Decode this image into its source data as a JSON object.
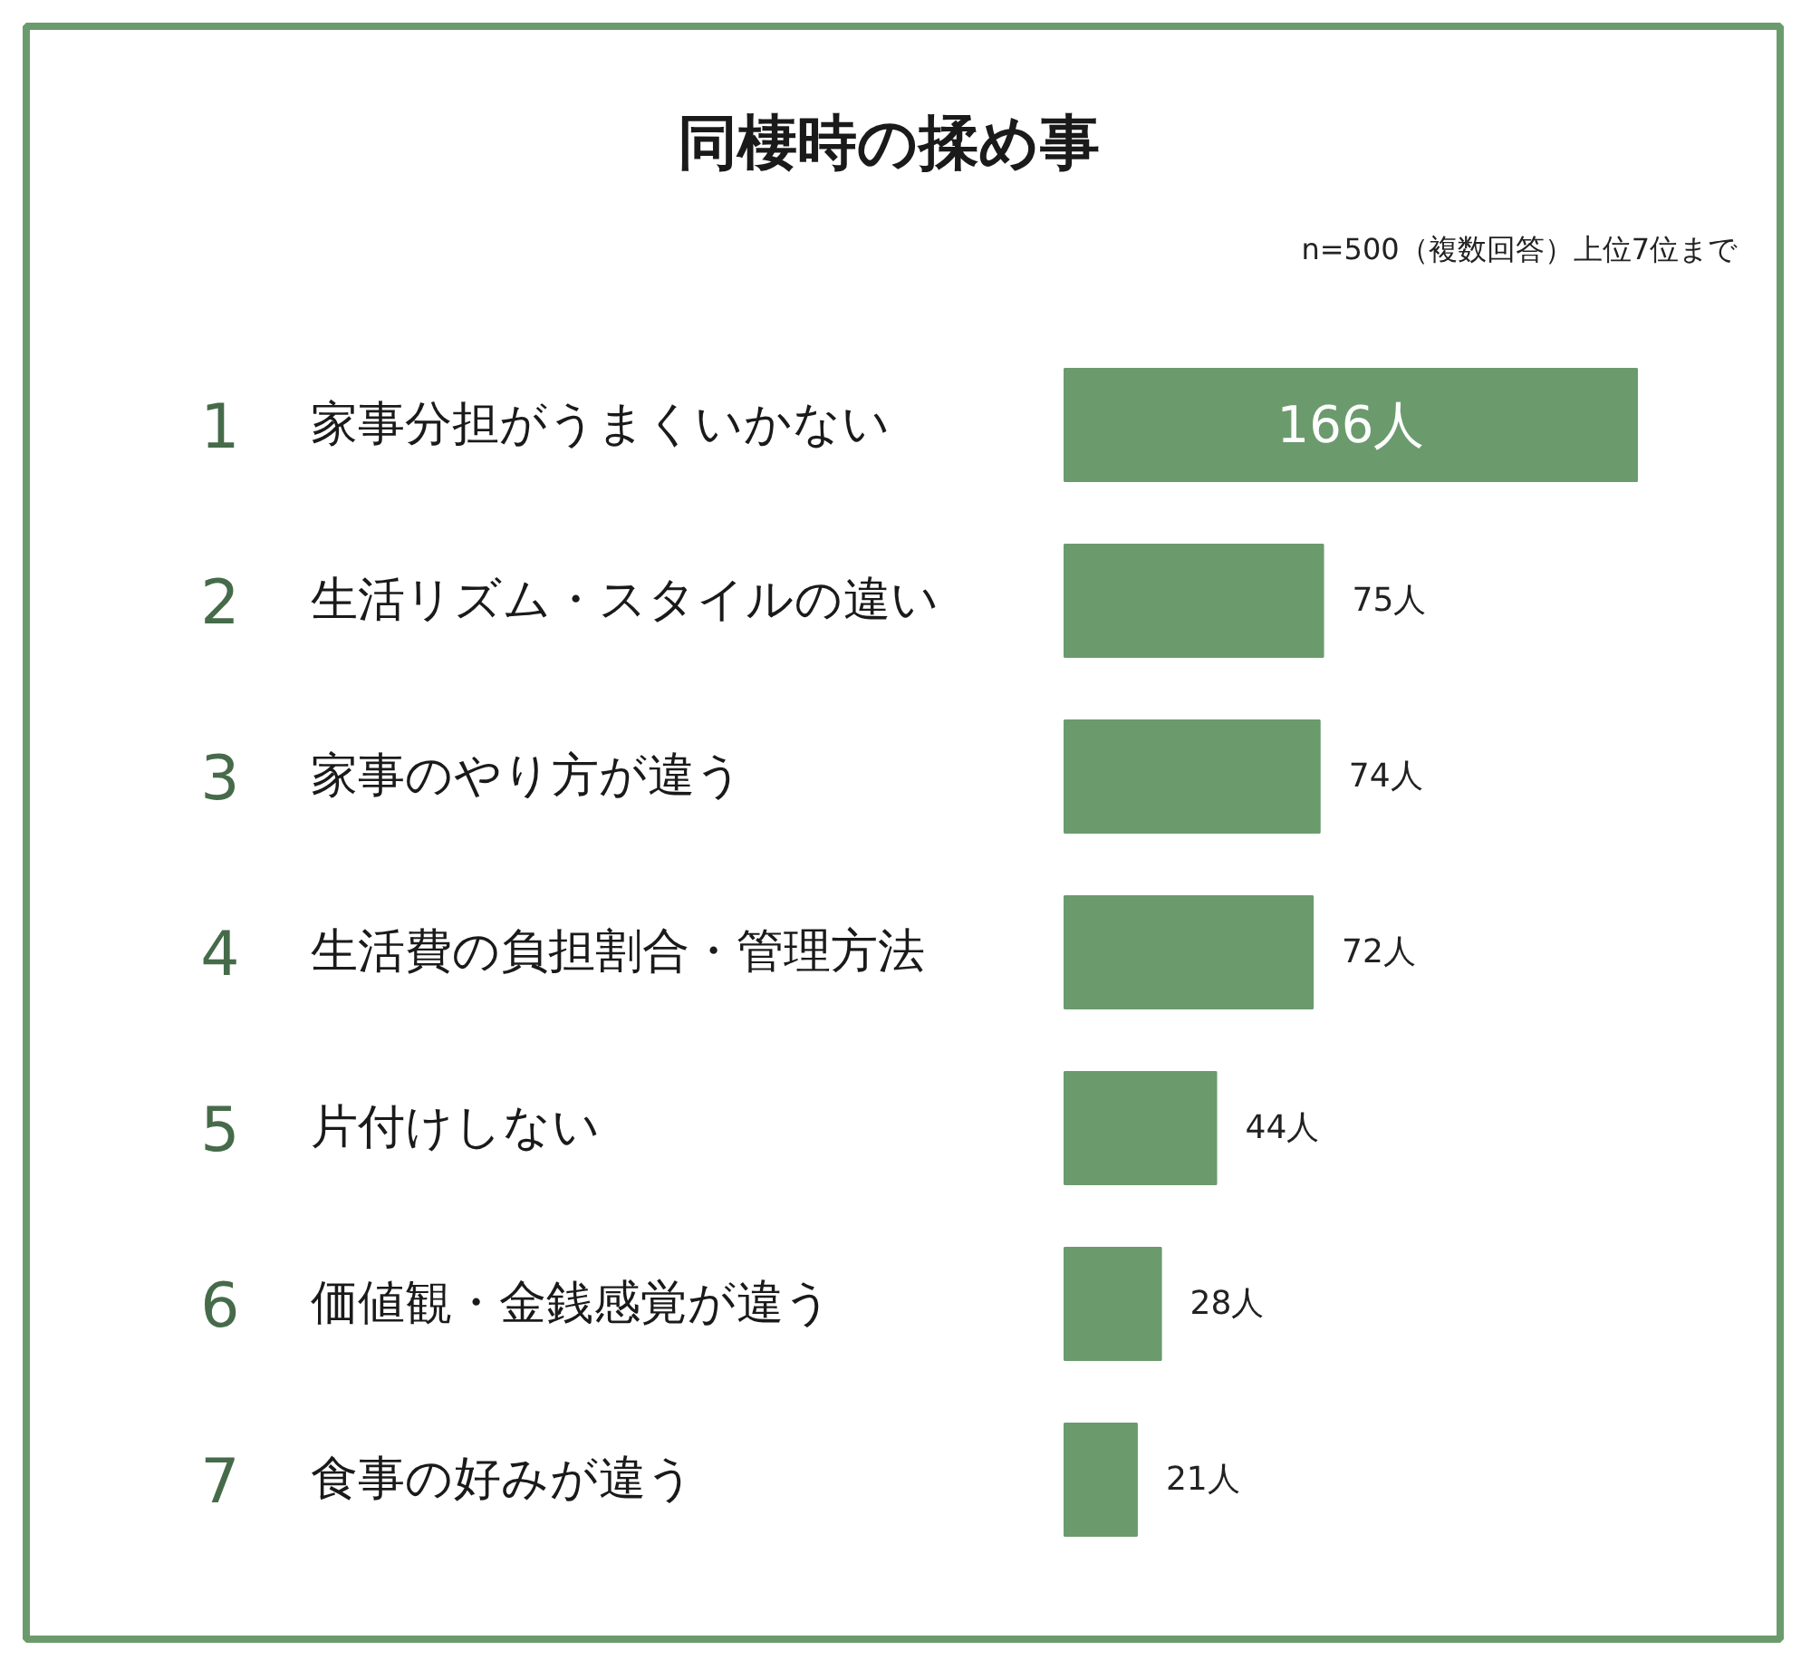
{
  "chart_data": {
    "type": "bar",
    "orientation": "horizontal",
    "title": "同棲時の揉め事",
    "subtitle": "n=500（複数回答）上位7位まで",
    "categories": [
      "1 家事分担がうまくいかない",
      "2 生活リズム・スタイルの違い",
      "3 家事のやり方が違う",
      "4 生活費の負担割合・管理方法",
      "5 片付けしない",
      "6 価値観・金銭感覚が違う",
      "7 食事の好みが違う"
    ],
    "values": [
      166,
      75,
      74,
      72,
      44,
      28,
      21
    ],
    "color": "#6b9b6c",
    "value_labels": [
      "166人",
      "75人",
      "74人",
      "72人",
      "44人",
      "28人",
      "21人"
    ]
  }
}
